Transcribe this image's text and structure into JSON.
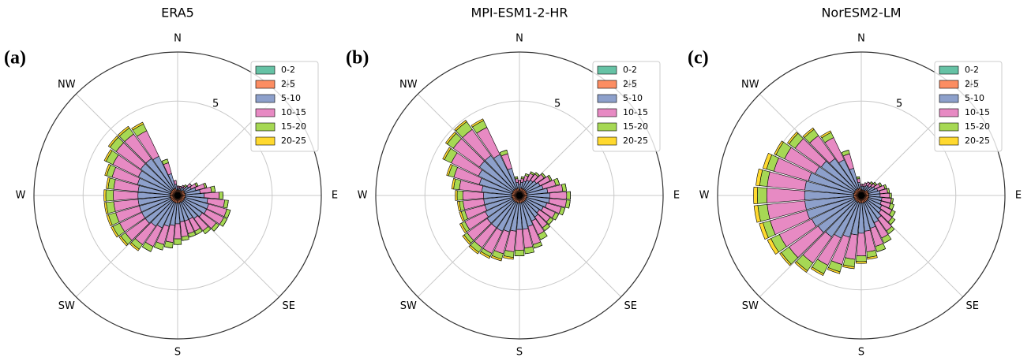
{
  "chart_data": [
    {
      "type": "windrose",
      "title": "ERA5",
      "panel_label": "(a)",
      "x": [
        0,
        10,
        20,
        30,
        40,
        50,
        60,
        70,
        80,
        90,
        100,
        110,
        120,
        130,
        140,
        150,
        160,
        170,
        180,
        190,
        200,
        210,
        220,
        230,
        240,
        250,
        260,
        270,
        280,
        290,
        300,
        310,
        320,
        330,
        340,
        350
      ],
      "xticks": [
        {
          "value": 0,
          "label": "N"
        },
        {
          "value": 45,
          "label": "NE"
        },
        {
          "value": 90,
          "label": "E"
        },
        {
          "value": 135,
          "label": "SE"
        },
        {
          "value": 180,
          "label": "S"
        },
        {
          "value": 225,
          "label": "SW"
        },
        {
          "value": 270,
          "label": "W"
        },
        {
          "value": 315,
          "label": "NW"
        }
      ],
      "ylim": [
        0,
        7.6
      ],
      "yticks": [
        5
      ],
      "grid": true,
      "legend": "upper right",
      "series": [
        {
          "name": "0-2",
          "color": "#66c2a5",
          "values": [
            0.1,
            0.1,
            0.1,
            0.1,
            0.1,
            0.1,
            0.1,
            0.1,
            0.1,
            0.1,
            0.1,
            0.1,
            0.1,
            0.1,
            0.1,
            0.1,
            0.1,
            0.1,
            0.1,
            0.1,
            0.1,
            0.1,
            0.1,
            0.1,
            0.1,
            0.1,
            0.1,
            0.1,
            0.1,
            0.1,
            0.1,
            0.1,
            0.1,
            0.1,
            0.1,
            0.1
          ]
        },
        {
          "name": "2-5",
          "color": "#fc8d62",
          "values": [
            0.2,
            0.2,
            0.2,
            0.2,
            0.2,
            0.3,
            0.3,
            0.3,
            0.3,
            0.3,
            0.3,
            0.3,
            0.3,
            0.3,
            0.3,
            0.3,
            0.3,
            0.3,
            0.3,
            0.3,
            0.3,
            0.3,
            0.3,
            0.3,
            0.3,
            0.3,
            0.3,
            0.3,
            0.3,
            0.3,
            0.3,
            0.3,
            0.3,
            0.3,
            0.3,
            0.2
          ]
        },
        {
          "name": "5-10",
          "color": "#8da0cb",
          "values": [
            0.1,
            0.1,
            0.1,
            0.2,
            0.2,
            0.3,
            0.4,
            0.6,
            0.8,
            1.0,
            1.2,
            1.3,
            1.3,
            1.2,
            1.1,
            1.0,
            1.0,
            1.0,
            1.1,
            1.2,
            1.3,
            1.5,
            1.6,
            1.7,
            1.7,
            1.7,
            1.7,
            1.7,
            1.7,
            1.8,
            1.9,
            2.0,
            2.0,
            1.9,
            0.8,
            0.3
          ]
        },
        {
          "name": "10-15",
          "color": "#e78ac3",
          "values": [
            0.1,
            0.1,
            0.1,
            0.1,
            0.1,
            0.2,
            0.3,
            0.5,
            0.6,
            0.8,
            0.9,
            1.0,
            1.0,
            0.9,
            0.8,
            0.7,
            0.7,
            0.8,
            0.8,
            0.9,
            1.0,
            1.1,
            1.2,
            1.3,
            1.3,
            1.3,
            1.3,
            1.3,
            1.3,
            1.4,
            1.5,
            1.6,
            1.6,
            1.5,
            0.6,
            0.2
          ]
        },
        {
          "name": "15-20",
          "color": "#a6d854",
          "values": [
            0,
            0,
            0,
            0,
            0.1,
            0,
            0.1,
            0.1,
            0.2,
            0.2,
            0.2,
            0.2,
            0.2,
            0.2,
            0.2,
            0.2,
            0.2,
            0.2,
            0.3,
            0.3,
            0.3,
            0.3,
            0.3,
            0.3,
            0.4,
            0.4,
            0.4,
            0.4,
            0.3,
            0.3,
            0.4,
            0.4,
            0.4,
            0.4,
            0.2,
            0
          ]
        },
        {
          "name": "20-25",
          "color": "#ffd92f",
          "values": [
            0,
            0,
            0,
            0,
            0,
            0,
            0,
            0,
            0,
            0,
            0,
            0,
            0,
            0,
            0,
            0,
            0,
            0,
            0,
            0,
            0,
            0,
            0.1,
            0.1,
            0.1,
            0.1,
            0.1,
            0.1,
            0.1,
            0.1,
            0.1,
            0.1,
            0.1,
            0.1,
            0,
            0
          ]
        }
      ]
    },
    {
      "type": "windrose",
      "title": "MPI-ESM1-2-HR",
      "panel_label": "(b)",
      "x": [
        0,
        10,
        20,
        30,
        40,
        50,
        60,
        70,
        80,
        90,
        100,
        110,
        120,
        130,
        140,
        150,
        160,
        170,
        180,
        190,
        200,
        210,
        220,
        230,
        240,
        250,
        260,
        270,
        280,
        290,
        300,
        310,
        320,
        330,
        340,
        350
      ],
      "xticks": [
        {
          "value": 0,
          "label": "N"
        },
        {
          "value": 45,
          "label": "NE"
        },
        {
          "value": 90,
          "label": "E"
        },
        {
          "value": 135,
          "label": "SE"
        },
        {
          "value": 180,
          "label": "S"
        },
        {
          "value": 225,
          "label": "SW"
        },
        {
          "value": 270,
          "label": "W"
        },
        {
          "value": 315,
          "label": "NW"
        }
      ],
      "ylim": [
        0,
        7.6
      ],
      "yticks": [
        5
      ],
      "grid": true,
      "legend": "upper right",
      "series": [
        {
          "name": "0-2",
          "color": "#66c2a5",
          "values": [
            0.1,
            0.1,
            0.1,
            0.1,
            0.1,
            0.1,
            0.1,
            0.1,
            0.1,
            0.1,
            0.1,
            0.1,
            0.1,
            0.1,
            0.1,
            0.1,
            0.1,
            0.1,
            0.1,
            0.1,
            0.1,
            0.1,
            0.1,
            0.1,
            0.1,
            0.1,
            0.1,
            0.1,
            0.1,
            0.1,
            0.1,
            0.1,
            0.1,
            0.1,
            0.1,
            0.1
          ]
        },
        {
          "name": "2-5",
          "color": "#fc8d62",
          "values": [
            0.2,
            0.3,
            0.3,
            0.3,
            0.3,
            0.3,
            0.3,
            0.3,
            0.3,
            0.3,
            0.3,
            0.3,
            0.3,
            0.3,
            0.3,
            0.3,
            0.3,
            0.3,
            0.3,
            0.3,
            0.3,
            0.3,
            0.3,
            0.3,
            0.3,
            0.3,
            0.3,
            0.3,
            0.3,
            0.3,
            0.3,
            0.3,
            0.3,
            0.3,
            0.3,
            0.3
          ]
        },
        {
          "name": "5-10",
          "color": "#8da0cb",
          "values": [
            0.3,
            0.3,
            0.4,
            0.5,
            0.6,
            0.7,
            0.8,
            0.9,
            1.1,
            1.2,
            1.2,
            1.1,
            1.0,
            0.9,
            1.0,
            1.1,
            1.3,
            1.4,
            1.4,
            1.5,
            1.6,
            1.7,
            1.7,
            1.7,
            1.6,
            1.5,
            1.5,
            1.5,
            1.6,
            1.8,
            2.0,
            2.2,
            2.2,
            2.0,
            1.1,
            0.3
          ]
        },
        {
          "name": "10-15",
          "color": "#e78ac3",
          "values": [
            0.2,
            0.2,
            0.3,
            0.4,
            0.4,
            0.5,
            0.6,
            0.7,
            0.8,
            0.9,
            0.9,
            0.8,
            0.7,
            0.7,
            0.7,
            0.8,
            1.0,
            1.0,
            1.1,
            1.1,
            1.2,
            1.3,
            1.3,
            1.3,
            1.2,
            1.1,
            1.1,
            1.1,
            1.2,
            1.4,
            1.6,
            1.7,
            1.7,
            1.6,
            0.8,
            0.2
          ]
        },
        {
          "name": "15-20",
          "color": "#a6d854",
          "values": [
            0,
            0.1,
            0.1,
            0.1,
            0.1,
            0.1,
            0.1,
            0.2,
            0.2,
            0.2,
            0.2,
            0.2,
            0.2,
            0.2,
            0.2,
            0.3,
            0.2,
            0.3,
            0.3,
            0.3,
            0.3,
            0.2,
            0.3,
            0.2,
            0.2,
            0.2,
            0.2,
            0.3,
            0.3,
            0.3,
            0.4,
            0.4,
            0.5,
            0.4,
            0.2,
            0.1
          ]
        },
        {
          "name": "20-25",
          "color": "#ffd92f",
          "values": [
            0,
            0,
            0,
            0,
            0,
            0,
            0,
            0,
            0,
            0,
            0,
            0,
            0,
            0,
            0,
            0,
            0,
            0,
            0,
            0.1,
            0.1,
            0.1,
            0.1,
            0.1,
            0.1,
            0.1,
            0.1,
            0.1,
            0.1,
            0.1,
            0.1,
            0.1,
            0.1,
            0.1,
            0,
            0
          ]
        }
      ]
    },
    {
      "type": "windrose",
      "title": "NorESM2-LM",
      "panel_label": "(c)",
      "x": [
        0,
        10,
        20,
        30,
        40,
        50,
        60,
        70,
        80,
        90,
        100,
        110,
        120,
        130,
        140,
        150,
        160,
        170,
        180,
        190,
        200,
        210,
        220,
        230,
        240,
        250,
        260,
        270,
        280,
        290,
        300,
        310,
        320,
        330,
        340,
        350
      ],
      "xticks": [
        {
          "value": 0,
          "label": "N"
        },
        {
          "value": 45,
          "label": "NE"
        },
        {
          "value": 90,
          "label": "E"
        },
        {
          "value": 135,
          "label": "SE"
        },
        {
          "value": 180,
          "label": "S"
        },
        {
          "value": 225,
          "label": "SW"
        },
        {
          "value": 270,
          "label": "W"
        },
        {
          "value": 315,
          "label": "NW"
        }
      ],
      "ylim": [
        0,
        7.6
      ],
      "yticks": [
        5
      ],
      "grid": true,
      "legend": "upper right",
      "series": [
        {
          "name": "0-2",
          "color": "#66c2a5",
          "values": [
            0.1,
            0.1,
            0.1,
            0.1,
            0.1,
            0.1,
            0.1,
            0.1,
            0.1,
            0.1,
            0.1,
            0.1,
            0.1,
            0.1,
            0.1,
            0.1,
            0.1,
            0.1,
            0.1,
            0.1,
            0.1,
            0.1,
            0.1,
            0.1,
            0.1,
            0.1,
            0.1,
            0.1,
            0.1,
            0.1,
            0.1,
            0.1,
            0.1,
            0.1,
            0.1,
            0.1
          ]
        },
        {
          "name": "2-5",
          "color": "#fc8d62",
          "values": [
            0.2,
            0.2,
            0.2,
            0.2,
            0.2,
            0.3,
            0.3,
            0.3,
            0.3,
            0.3,
            0.3,
            0.3,
            0.3,
            0.3,
            0.3,
            0.3,
            0.3,
            0.3,
            0.3,
            0.3,
            0.3,
            0.3,
            0.3,
            0.3,
            0.3,
            0.3,
            0.3,
            0.3,
            0.3,
            0.3,
            0.3,
            0.3,
            0.3,
            0.3,
            0.3,
            0.3
          ]
        },
        {
          "name": "5-10",
          "color": "#8da0cb",
          "values": [
            0.2,
            0.2,
            0.2,
            0.3,
            0.3,
            0.3,
            0.4,
            0.5,
            0.6,
            0.6,
            0.7,
            0.7,
            0.8,
            0.9,
            1.1,
            1.2,
            1.4,
            1.5,
            1.6,
            1.7,
            1.9,
            2.1,
            2.3,
            2.4,
            2.5,
            2.6,
            2.6,
            2.6,
            2.6,
            2.5,
            2.3,
            2.2,
            2.0,
            1.7,
            1.1,
            0.3
          ]
        },
        {
          "name": "10-15",
          "color": "#e78ac3",
          "values": [
            0.1,
            0.1,
            0.2,
            0.2,
            0.2,
            0.2,
            0.3,
            0.4,
            0.4,
            0.5,
            0.5,
            0.5,
            0.6,
            0.7,
            0.8,
            0.9,
            1.0,
            1.1,
            1.2,
            1.3,
            1.5,
            1.6,
            1.7,
            1.9,
            1.9,
            2.0,
            2.0,
            2.0,
            2.0,
            1.9,
            1.8,
            1.7,
            1.5,
            1.3,
            0.8,
            0.2
          ]
        },
        {
          "name": "15-20",
          "color": "#a6d854",
          "values": [
            0,
            0,
            0,
            0,
            0.1,
            0.1,
            0.1,
            0.1,
            0.1,
            0.1,
            0.1,
            0.2,
            0.2,
            0.2,
            0.2,
            0.3,
            0.3,
            0.3,
            0.3,
            0.4,
            0.4,
            0.5,
            0.5,
            0.5,
            0.5,
            0.4,
            0.5,
            0.5,
            0.4,
            0.4,
            0.5,
            0.4,
            0.4,
            0.3,
            0.2,
            0.1
          ]
        },
        {
          "name": "20-25",
          "color": "#ffd92f",
          "values": [
            0,
            0,
            0,
            0,
            0,
            0,
            0,
            0,
            0,
            0,
            0,
            0,
            0,
            0,
            0,
            0,
            0,
            0.1,
            0.1,
            0.1,
            0.1,
            0.1,
            0.1,
            0.1,
            0.2,
            0.2,
            0.2,
            0.2,
            0.2,
            0.2,
            0.1,
            0.1,
            0.1,
            0.1,
            0,
            0
          ]
        }
      ]
    }
  ]
}
